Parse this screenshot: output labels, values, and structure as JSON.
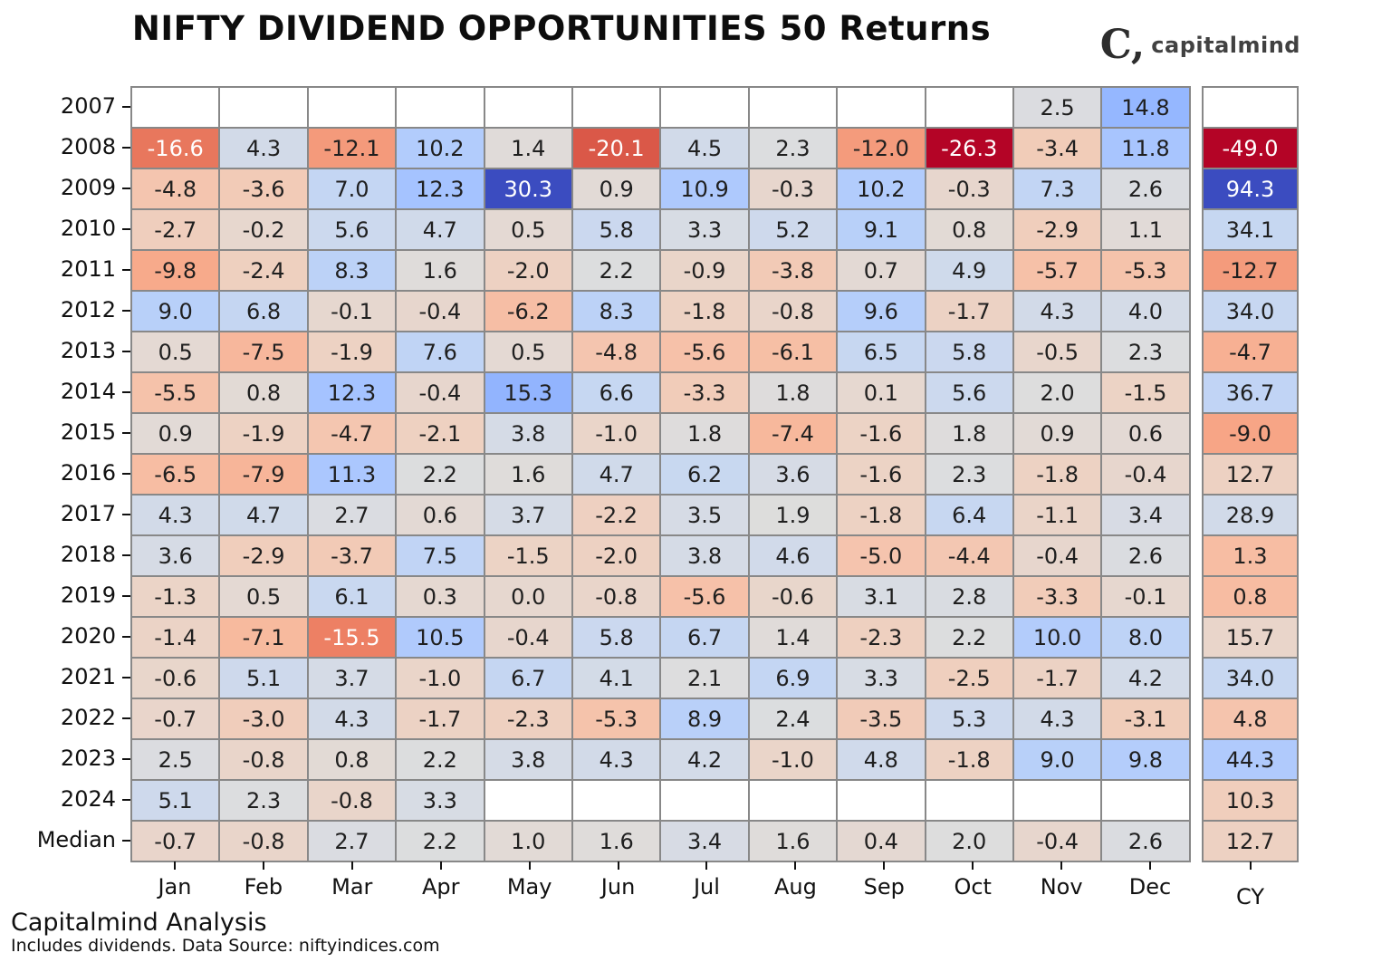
{
  "title": "NIFTY DIVIDEND OPPORTUNITIES 50 Returns",
  "logo": {
    "mark": "C,",
    "text": "capitalmind"
  },
  "footer": {
    "line1": "Capitalmind Analysis",
    "line2": "Includes dividends. Data Source: niftyindices.com"
  },
  "chart_data": {
    "type": "heatmap",
    "title": "NIFTY DIVIDEND OPPORTUNITIES 50 Returns",
    "row_labels": [
      "2007",
      "2008",
      "2009",
      "2010",
      "2011",
      "2012",
      "2013",
      "2014",
      "2015",
      "2016",
      "2017",
      "2018",
      "2019",
      "2020",
      "2021",
      "2022",
      "2023",
      "2024",
      "Median"
    ],
    "col_labels": [
      "Jan",
      "Feb",
      "Mar",
      "Apr",
      "May",
      "Jun",
      "Jul",
      "Aug",
      "Sep",
      "Oct",
      "Nov",
      "Dec"
    ],
    "cy_label": "CY",
    "values": [
      [
        null,
        null,
        null,
        null,
        null,
        null,
        null,
        null,
        null,
        null,
        2.5,
        14.8
      ],
      [
        -16.6,
        4.3,
        -12.1,
        10.2,
        1.4,
        -20.1,
        4.5,
        2.3,
        -12.0,
        -26.3,
        -3.4,
        11.8
      ],
      [
        -4.8,
        -3.6,
        7.0,
        12.3,
        30.3,
        0.9,
        10.9,
        -0.3,
        10.2,
        -0.3,
        7.3,
        2.6
      ],
      [
        -2.7,
        -0.2,
        5.6,
        4.7,
        0.5,
        5.8,
        3.3,
        5.2,
        9.1,
        0.8,
        -2.9,
        1.1
      ],
      [
        -9.8,
        -2.4,
        8.3,
        1.6,
        -2.0,
        2.2,
        -0.9,
        -3.8,
        0.7,
        4.9,
        -5.7,
        -5.3
      ],
      [
        9.0,
        6.8,
        -0.1,
        -0.4,
        -6.2,
        8.3,
        -1.8,
        -0.8,
        9.6,
        -1.7,
        4.3,
        4.0
      ],
      [
        0.5,
        -7.5,
        -1.9,
        7.6,
        0.5,
        -4.8,
        -5.6,
        -6.1,
        6.5,
        5.8,
        -0.5,
        2.3
      ],
      [
        -5.5,
        0.8,
        12.3,
        -0.4,
        15.3,
        6.6,
        -3.3,
        1.8,
        0.1,
        5.6,
        2.0,
        -1.5
      ],
      [
        0.9,
        -1.9,
        -4.7,
        -2.1,
        3.8,
        -1.0,
        1.8,
        -7.4,
        -1.6,
        1.8,
        0.9,
        0.6
      ],
      [
        -6.5,
        -7.9,
        11.3,
        2.2,
        1.6,
        4.7,
        6.2,
        3.6,
        -1.6,
        2.3,
        -1.8,
        -0.4
      ],
      [
        4.3,
        4.7,
        2.7,
        0.6,
        3.7,
        -2.2,
        3.5,
        1.9,
        -1.8,
        6.4,
        -1.1,
        3.4
      ],
      [
        3.6,
        -2.9,
        -3.7,
        7.5,
        -1.5,
        -2.0,
        3.8,
        4.6,
        -5.0,
        -4.4,
        -0.4,
        2.6
      ],
      [
        -1.3,
        0.5,
        6.1,
        0.3,
        0.0,
        -0.8,
        -5.6,
        -0.6,
        3.1,
        2.8,
        -3.3,
        -0.1
      ],
      [
        -1.4,
        -7.1,
        -15.5,
        10.5,
        -0.4,
        5.8,
        6.7,
        1.4,
        -2.3,
        2.2,
        10.0,
        8.0
      ],
      [
        -0.6,
        5.1,
        3.7,
        -1.0,
        6.7,
        4.1,
        2.1,
        6.9,
        3.3,
        -2.5,
        -1.7,
        4.2
      ],
      [
        -0.7,
        -3.0,
        4.3,
        -1.7,
        -2.3,
        -5.3,
        8.9,
        2.4,
        -3.5,
        5.3,
        4.3,
        -3.1
      ],
      [
        2.5,
        -0.8,
        0.8,
        2.2,
        3.8,
        4.3,
        4.2,
        -1.0,
        4.8,
        -1.8,
        9.0,
        9.8
      ],
      [
        5.1,
        2.3,
        -0.8,
        3.3,
        null,
        null,
        null,
        null,
        null,
        null,
        null,
        null
      ],
      [
        -0.7,
        -0.8,
        2.7,
        2.2,
        1.0,
        1.6,
        3.4,
        1.6,
        0.4,
        2.0,
        -0.4,
        2.6
      ]
    ],
    "cy_values": [
      null,
      -49.0,
      94.3,
      34.1,
      -12.7,
      34.0,
      -4.7,
      36.7,
      -9.0,
      12.7,
      28.9,
      1.3,
      0.8,
      15.7,
      34.0,
      4.8,
      44.3,
      10.3,
      12.7
    ],
    "monthly_norm": {
      "vmin": -26.3,
      "vmax": 30.3
    },
    "cy_norm": {
      "vmin": -49.0,
      "vmax": 94.3
    },
    "colormap": {
      "name": "coolwarm_r",
      "stops_blue_to_red": [
        "#3b4cc0",
        "#445acc",
        "#4d68d7",
        "#5775e1",
        "#6282ea",
        "#6c8ef1",
        "#7799f7",
        "#82a5fb",
        "#8db0fe",
        "#98b9ff",
        "#a3c2ff",
        "#aec9fd",
        "#b8d0f9",
        "#c2d5f4",
        "#ccd9ee",
        "#d5dbe6",
        "#dddddd",
        "#e5d8d1",
        "#ecd3c5",
        "#f1ccb9",
        "#f5c4ad",
        "#f7bba0",
        "#f7b194",
        "#f7a687",
        "#f49a7b",
        "#f18d6f",
        "#ec7f63",
        "#e57058",
        "#de604d",
        "#d55042",
        "#cb3e38",
        "#c02b2e",
        "#b40426"
      ]
    },
    "text_colors": {
      "dark": "#1f1f1f",
      "light": "#ffffff"
    },
    "grid_color": "#888888",
    "empty_cell_color": "#ffffff",
    "legend": "none",
    "grid": true
  }
}
